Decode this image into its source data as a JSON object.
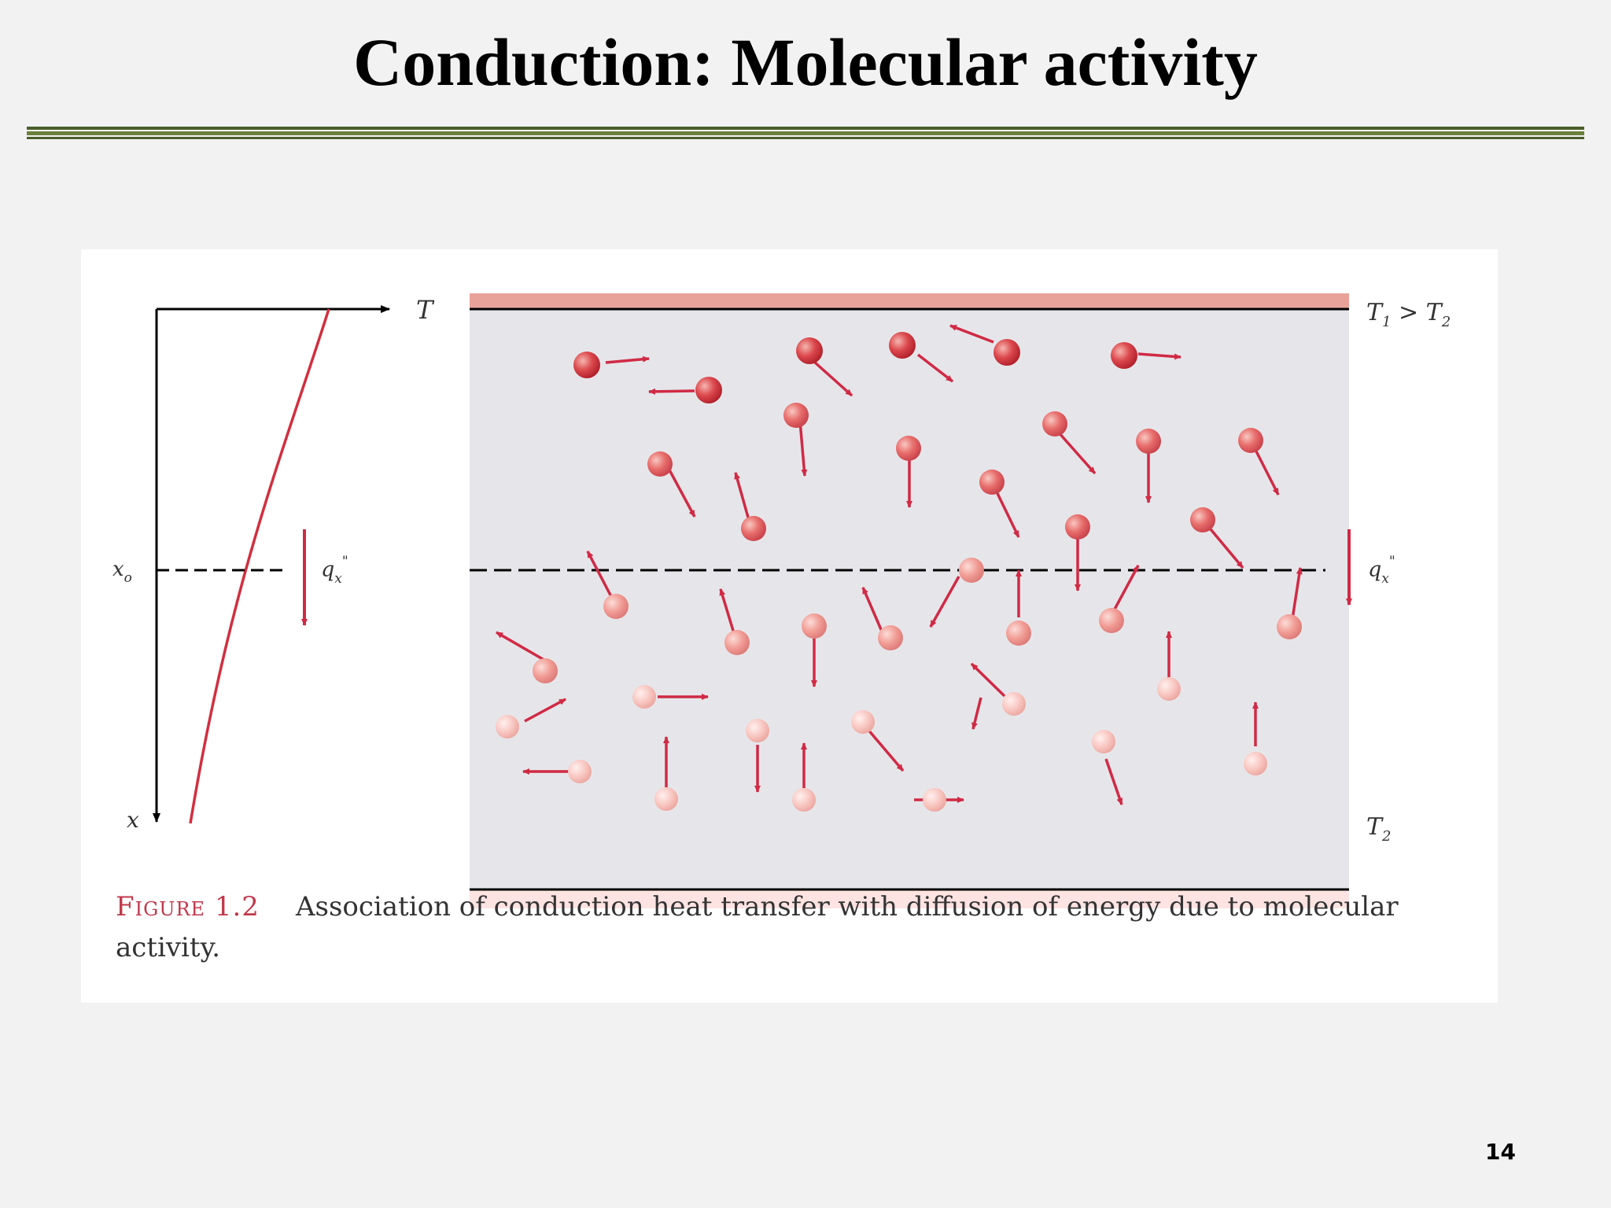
{
  "slide": {
    "title": "Conduction: Molecular activity",
    "page_number": "14",
    "rule_colors": [
      "#4a5e2a",
      "#6b7f3a",
      "#4a5e2a"
    ]
  },
  "figure": {
    "axis_labels": {
      "temperature": "T",
      "position": "x",
      "plane": "xo"
    },
    "heat_flux_label": "q''x",
    "boundary_labels": {
      "hot": "T1 > T2",
      "cold": "T2"
    },
    "colors": {
      "hot_wall": "#e8a29a",
      "cold_wall": "#fde3e1",
      "medium": "#e6e6ea",
      "temperature_curve": "#d12f3f",
      "arrow": "#d02a45"
    },
    "caption_label": "Figure 1.2",
    "caption_text": "Association of conduction heat transfer with diffusion of energy due to molecular activity."
  }
}
